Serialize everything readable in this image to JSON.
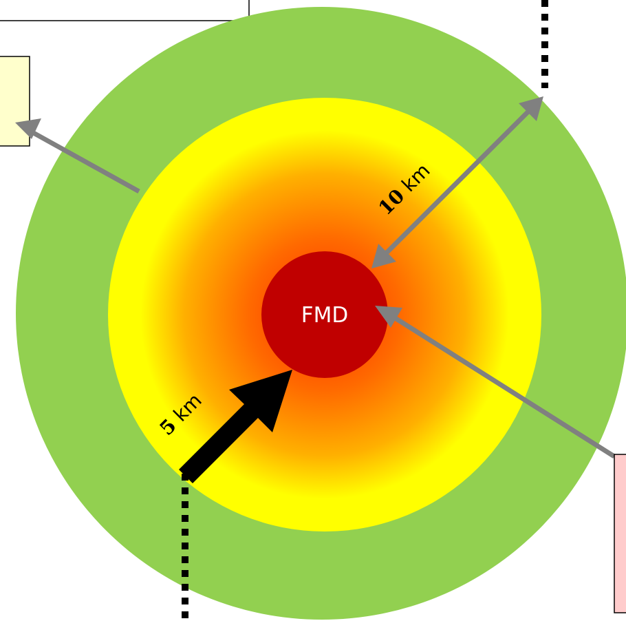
{
  "diagram": {
    "center_label": "FMD",
    "inner_radius_label": {
      "value": "5",
      "unit": " km"
    },
    "outer_radius_label": {
      "value": "10",
      "unit": " km"
    }
  },
  "colors": {
    "outer_zone": "#92d050",
    "inner_zone_edge": "#ffff00",
    "inner_zone_mid": "#ff9900",
    "inner_zone_core": "#ff4000",
    "center": "#c00000",
    "pointer_arrow": "#808080",
    "radius_arrow": "#000000",
    "left_box_fill": "#ffffcc",
    "right_box_fill": "#ffcccc"
  }
}
